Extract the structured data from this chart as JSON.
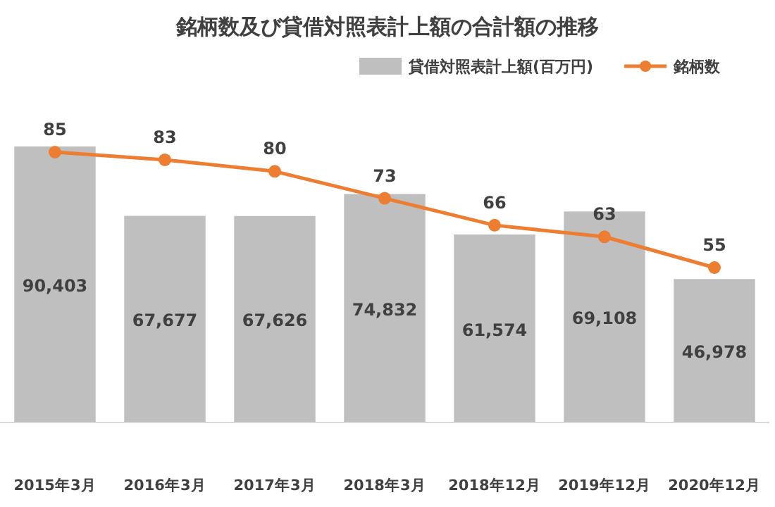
{
  "chart_data": {
    "type": "bar",
    "title": "銘柄数及び貸借対照表計上額の合計額の推移",
    "categories": [
      "2015年3月",
      "2016年3月",
      "2017年3月",
      "2018年3月",
      "2018年12月",
      "2019年12月",
      "2020年12月"
    ],
    "series": [
      {
        "name": "貸借対照表計上額(百万円)",
        "color": "#bfbfbf",
        "values": [
          90403,
          67677,
          67626,
          74832,
          61574,
          69108,
          46978
        ],
        "value_labels": [
          "90,403",
          "67,677",
          "67,626",
          "74,832",
          "61,574",
          "69,108",
          "46,978"
        ]
      },
      {
        "name": "銘柄数",
        "type": "line",
        "axis": "y2",
        "color": "#ed7d31",
        "values": [
          85,
          83,
          80,
          73,
          66,
          63,
          55
        ]
      }
    ],
    "data_labels": true,
    "legend": "top",
    "marker": "circle"
  }
}
